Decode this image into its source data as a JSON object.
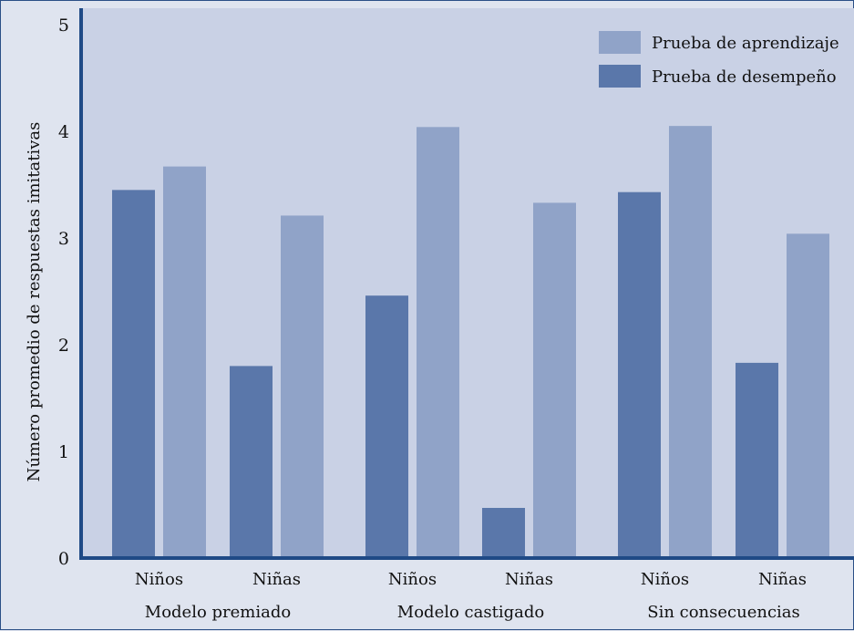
{
  "colors": {
    "plot_bg": "#c9d1e5",
    "page_bg": "#dfe4ef",
    "axis": "#1f4a86",
    "desempeno": "#5a77aa",
    "aprendizaje": "#90a3c8"
  },
  "chart_data": {
    "type": "bar",
    "ylabel": "Número promedio de respuestas imitativas",
    "xlabel": "",
    "ylim": [
      0,
      5
    ],
    "yticks": [
      "0",
      "1",
      "2",
      "3",
      "4",
      "5"
    ],
    "legend_position": "top-right",
    "groups": [
      {
        "label": "Modelo premiado",
        "subcategories": [
          "Niños",
          "Niñas"
        ]
      },
      {
        "label": "Modelo castigado",
        "subcategories": [
          "Niños",
          "Niñas"
        ]
      },
      {
        "label": "Sin consecuencias",
        "subcategories": [
          "Niños",
          "Niñas"
        ]
      }
    ],
    "categories": [
      "Niños",
      "Niñas",
      "Niños",
      "Niñas",
      "Niños",
      "Niñas"
    ],
    "series": [
      {
        "name": "Prueba de desempeño",
        "values": [
          3.45,
          1.8,
          2.46,
          0.47,
          3.43,
          1.83
        ]
      },
      {
        "name": "Prueba de aprendizaje",
        "values": [
          3.67,
          3.21,
          4.04,
          3.33,
          4.05,
          3.04
        ]
      }
    ],
    "legend": [
      "Prueba de aprendizaje",
      "Prueba de desempeño"
    ]
  }
}
